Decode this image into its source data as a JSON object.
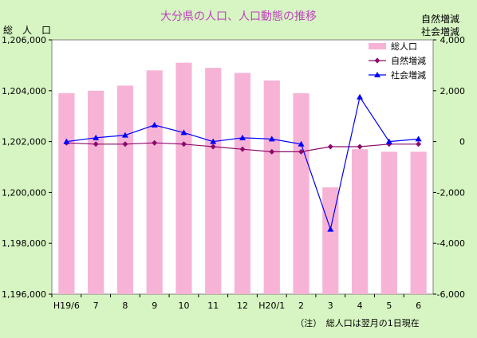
{
  "chart_data": {
    "type": "bar",
    "title": "大分県の人口、人口動態の推移",
    "left_axis_title": "総　人　口",
    "right_axis_title_line1": "自然増減",
    "right_axis_title_line2": "社会増減",
    "note": "（注）　総人口は翌月の1日現在",
    "categories": [
      "H19/6",
      "7",
      "8",
      "9",
      "10",
      "11",
      "12",
      "H20/1",
      "2",
      "3",
      "4",
      "5",
      "6"
    ],
    "y_left": {
      "min": 1196000,
      "max": 1206000,
      "step": 2000,
      "ticks": [
        "1,196,000",
        "1,198,000",
        "1,200,000",
        "1,202,000",
        "1,204,000",
        "1,206,000"
      ]
    },
    "y_right": {
      "min": -6000,
      "max": 4000,
      "step": 2000,
      "ticks": [
        "-6,000",
        "-4,000",
        "-2,000",
        "0",
        "2,000",
        "4,000"
      ]
    },
    "series": [
      {
        "name": "総人口",
        "kind": "bar",
        "axis": "left",
        "color": "#f7b3d6",
        "values": [
          1203900,
          1204000,
          1204200,
          1204800,
          1205100,
          1204900,
          1204700,
          1204400,
          1203900,
          1200200,
          1201700,
          1201600,
          1201600
        ]
      },
      {
        "name": "自然増減",
        "kind": "line",
        "axis": "right",
        "color": "#8b0a6b",
        "marker": "diamond",
        "values": [
          -50,
          -100,
          -100,
          -50,
          -100,
          -200,
          -300,
          -400,
          -400,
          -200,
          -200,
          -100,
          -100
        ]
      },
      {
        "name": "社会増減",
        "kind": "line",
        "axis": "right",
        "color": "#0000ff",
        "marker": "triangle",
        "values": [
          0,
          150,
          250,
          650,
          350,
          0,
          150,
          100,
          -100,
          -3450,
          1750,
          0,
          100
        ]
      }
    ],
    "grid": false,
    "legend_position": "top-right",
    "colors": {
      "background": "#d6f5c2",
      "plot_background": "#ffffff",
      "title": "#c040c0"
    }
  }
}
